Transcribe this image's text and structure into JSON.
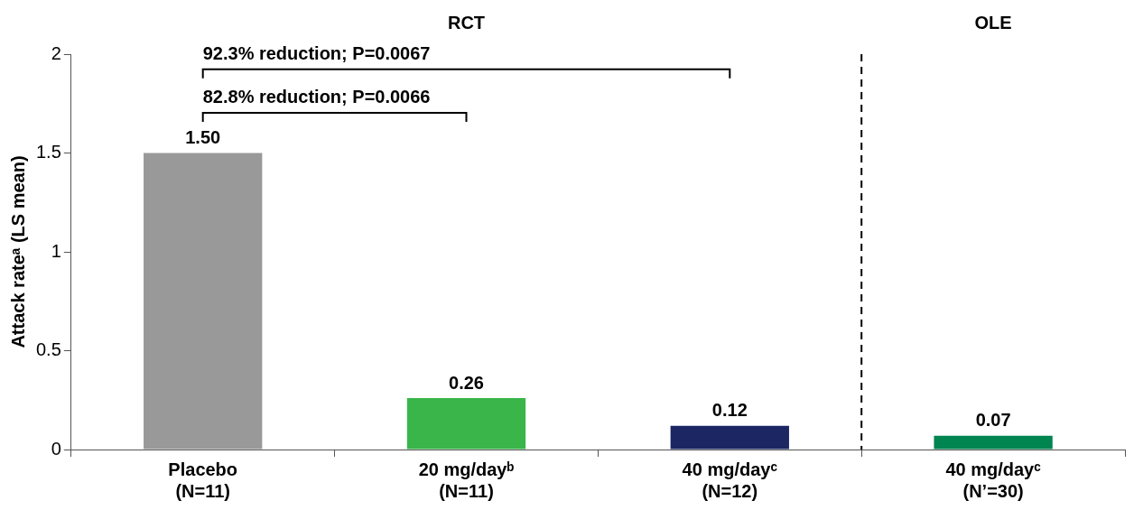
{
  "chart_data": {
    "type": "bar",
    "ylabel": "Attack rateᵃ (LS mean)",
    "categories": [
      "Placebo\n(N=11)",
      "20 mg/dayᵇ\n(N=11)",
      "40 mg/dayᶜ\n(N=12)",
      "40 mg/dayᶜ\n(N’=30)"
    ],
    "values": [
      1.5,
      0.26,
      0.12,
      0.07
    ],
    "colors": [
      "#999999",
      "#39b54a",
      "#1b2663",
      "#008450"
    ],
    "value_labels": [
      "1.50",
      "0.26",
      "0.12",
      "0.07"
    ],
    "ylim": [
      0,
      2
    ],
    "yticks": [
      0,
      0.5,
      1,
      1.5,
      2
    ],
    "grid": false,
    "legend": false,
    "annotations": [
      "RCT",
      "OLE",
      "82.8% reduction; P=0.0066",
      "92.3% reduction; P=0.0067"
    ]
  }
}
